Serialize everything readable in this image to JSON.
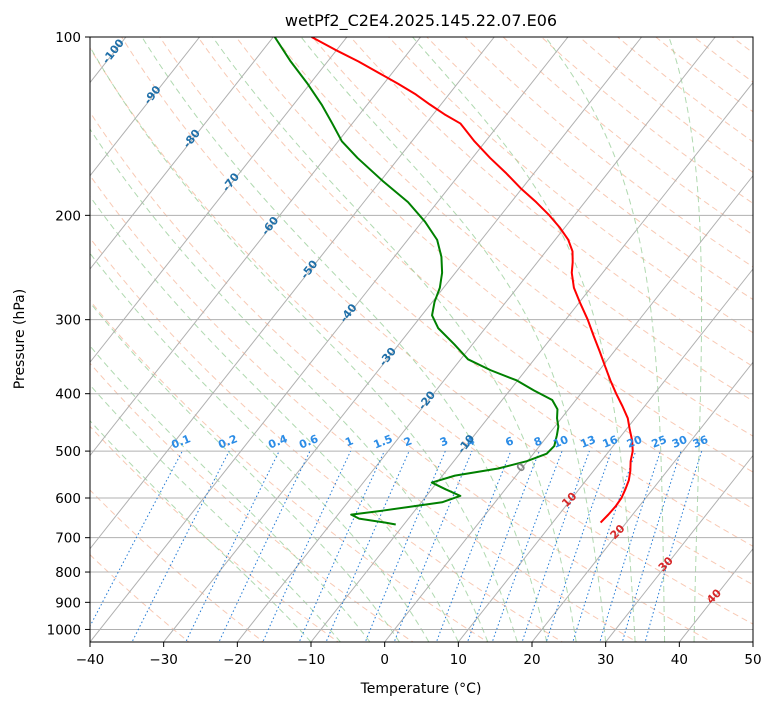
{
  "chart_data": {
    "type": "line",
    "diagram": "skew-T log-P",
    "title": "wetPf2_C2E4.2025.145.22.07.E06",
    "xlabel": "Temperature (°C)",
    "ylabel": "Pressure (hPa)",
    "xlim": [
      -40,
      50
    ],
    "ylim": [
      1050,
      100
    ],
    "y_scale": "log",
    "grid": true,
    "x_ticks": [
      "−40",
      "−30",
      "−20",
      "−10",
      "0",
      "10",
      "20",
      "30",
      "40",
      "50"
    ],
    "y_ticks": [
      "100",
      "200",
      "300",
      "400",
      "500",
      "600",
      "700",
      "800",
      "900",
      "1000"
    ],
    "series": [
      {
        "color": "#ff0000",
        "points": [
          {
            "p": 660,
            "t": 16.5
          },
          {
            "p": 640,
            "t": 16.7
          },
          {
            "p": 620,
            "t": 16.8
          },
          {
            "p": 600,
            "t": 16.7
          },
          {
            "p": 580,
            "t": 16.3
          },
          {
            "p": 560,
            "t": 15.8
          },
          {
            "p": 540,
            "t": 15.0
          },
          {
            "p": 520,
            "t": 14.0
          },
          {
            "p": 500,
            "t": 13.2
          },
          {
            "p": 480,
            "t": 12.0
          },
          {
            "p": 460,
            "t": 10.5
          },
          {
            "p": 440,
            "t": 9.0
          },
          {
            "p": 420,
            "t": 7.0
          },
          {
            "p": 400,
            "t": 4.8
          },
          {
            "p": 380,
            "t": 2.6
          },
          {
            "p": 360,
            "t": 0.4
          },
          {
            "p": 340,
            "t": -1.9
          },
          {
            "p": 320,
            "t": -4.4
          },
          {
            "p": 300,
            "t": -7.0
          },
          {
            "p": 280,
            "t": -10.0
          },
          {
            "p": 265,
            "t": -12.3
          },
          {
            "p": 250,
            "t": -14.2
          },
          {
            "p": 240,
            "t": -15.2
          },
          {
            "p": 230,
            "t": -16.4
          },
          {
            "p": 220,
            "t": -18.2
          },
          {
            "p": 210,
            "t": -20.6
          },
          {
            "p": 200,
            "t": -23.4
          },
          {
            "p": 190,
            "t": -26.6
          },
          {
            "p": 180,
            "t": -30.2
          },
          {
            "p": 170,
            "t": -33.7
          },
          {
            "p": 160,
            "t": -37.6
          },
          {
            "p": 150,
            "t": -41.5
          },
          {
            "p": 140,
            "t": -45.3
          },
          {
            "p": 135,
            "t": -48.5
          },
          {
            "p": 130,
            "t": -51.5
          },
          {
            "p": 125,
            "t": -54.5
          },
          {
            "p": 120,
            "t": -58.0
          },
          {
            "p": 115,
            "t": -61.8
          },
          {
            "p": 110,
            "t": -65.8
          },
          {
            "p": 105,
            "t": -70.3
          },
          {
            "p": 100,
            "t": -74.8
          }
        ]
      },
      {
        "color": "#008000",
        "points": [
          {
            "p": 665,
            "t": -11.1
          },
          {
            "p": 660,
            "t": -12.8
          },
          {
            "p": 650,
            "t": -16.7
          },
          {
            "p": 640,
            "t": -18.2
          },
          {
            "p": 630,
            "t": -14.3
          },
          {
            "p": 610,
            "t": -7.2
          },
          {
            "p": 595,
            "t": -5.4
          },
          {
            "p": 580,
            "t": -8.1
          },
          {
            "p": 565,
            "t": -10.7
          },
          {
            "p": 550,
            "t": -8.3
          },
          {
            "p": 535,
            "t": -3.2
          },
          {
            "p": 520,
            "t": -0.1
          },
          {
            "p": 505,
            "t": 1.8
          },
          {
            "p": 490,
            "t": 2.0
          },
          {
            "p": 470,
            "t": 1.2
          },
          {
            "p": 455,
            "t": 0.5
          },
          {
            "p": 440,
            "t": -0.6
          },
          {
            "p": 425,
            "t": -1.5
          },
          {
            "p": 410,
            "t": -3.2
          },
          {
            "p": 395,
            "t": -6.7
          },
          {
            "p": 380,
            "t": -10.1
          },
          {
            "p": 365,
            "t": -14.8
          },
          {
            "p": 350,
            "t": -19.0
          },
          {
            "p": 330,
            "t": -22.5
          },
          {
            "p": 310,
            "t": -26.4
          },
          {
            "p": 295,
            "t": -28.6
          },
          {
            "p": 280,
            "t": -29.7
          },
          {
            "p": 265,
            "t": -30.5
          },
          {
            "p": 250,
            "t": -31.8
          },
          {
            "p": 235,
            "t": -33.6
          },
          {
            "p": 220,
            "t": -36.0
          },
          {
            "p": 205,
            "t": -39.6
          },
          {
            "p": 190,
            "t": -44.0
          },
          {
            "p": 175,
            "t": -49.7
          },
          {
            "p": 160,
            "t": -55.6
          },
          {
            "p": 150,
            "t": -59.5
          },
          {
            "p": 140,
            "t": -62.7
          },
          {
            "p": 130,
            "t": -66.2
          },
          {
            "p": 120,
            "t": -70.3
          },
          {
            "p": 110,
            "t": -75.0
          },
          {
            "p": 100,
            "t": -79.8
          }
        ]
      }
    ],
    "isotherm_labels": [
      "-100",
      "-90",
      "-80",
      "-70",
      "-60",
      "-50",
      "-40",
      "-30",
      "-20",
      "-10"
    ],
    "isotherm_label_values": [
      -100,
      -90,
      -80,
      -70,
      -60,
      -50,
      -40,
      -30,
      -20,
      -10
    ],
    "mixing_ratio_labels": [
      "0.1",
      "0.2",
      "0.4",
      "0.6",
      "1",
      "1.5",
      "2",
      "3",
      "4",
      "6",
      "8",
      "10",
      "13",
      "16",
      "20",
      "25",
      "30",
      "36"
    ],
    "mixing_ratio_values": [
      0.1,
      0.2,
      0.4,
      0.6,
      1,
      1.5,
      2,
      3,
      4,
      6,
      8,
      10,
      13,
      16,
      20,
      25,
      30,
      36
    ],
    "moist_adiabat_labels": [
      "0",
      "10",
      "20",
      "30",
      "40"
    ],
    "moist_adiabat_label_values": [
      0,
      10,
      20,
      30,
      40
    ],
    "colors": {
      "temperature": "#ff0000",
      "dewpoint": "#008000",
      "isotherms": "#b0b0b0",
      "isobars": "#b0b0b0",
      "dry_adiabats": "#f4a582",
      "moist_adiabats": "#8fc98f",
      "mixing_ratio": "#1f78d4",
      "isotherm_label": "#1f6fa8",
      "mixing_label": "#2b8ce6",
      "moist_label_zero": "#888888",
      "moist_label": "#d62728",
      "frame": "#000000"
    }
  }
}
